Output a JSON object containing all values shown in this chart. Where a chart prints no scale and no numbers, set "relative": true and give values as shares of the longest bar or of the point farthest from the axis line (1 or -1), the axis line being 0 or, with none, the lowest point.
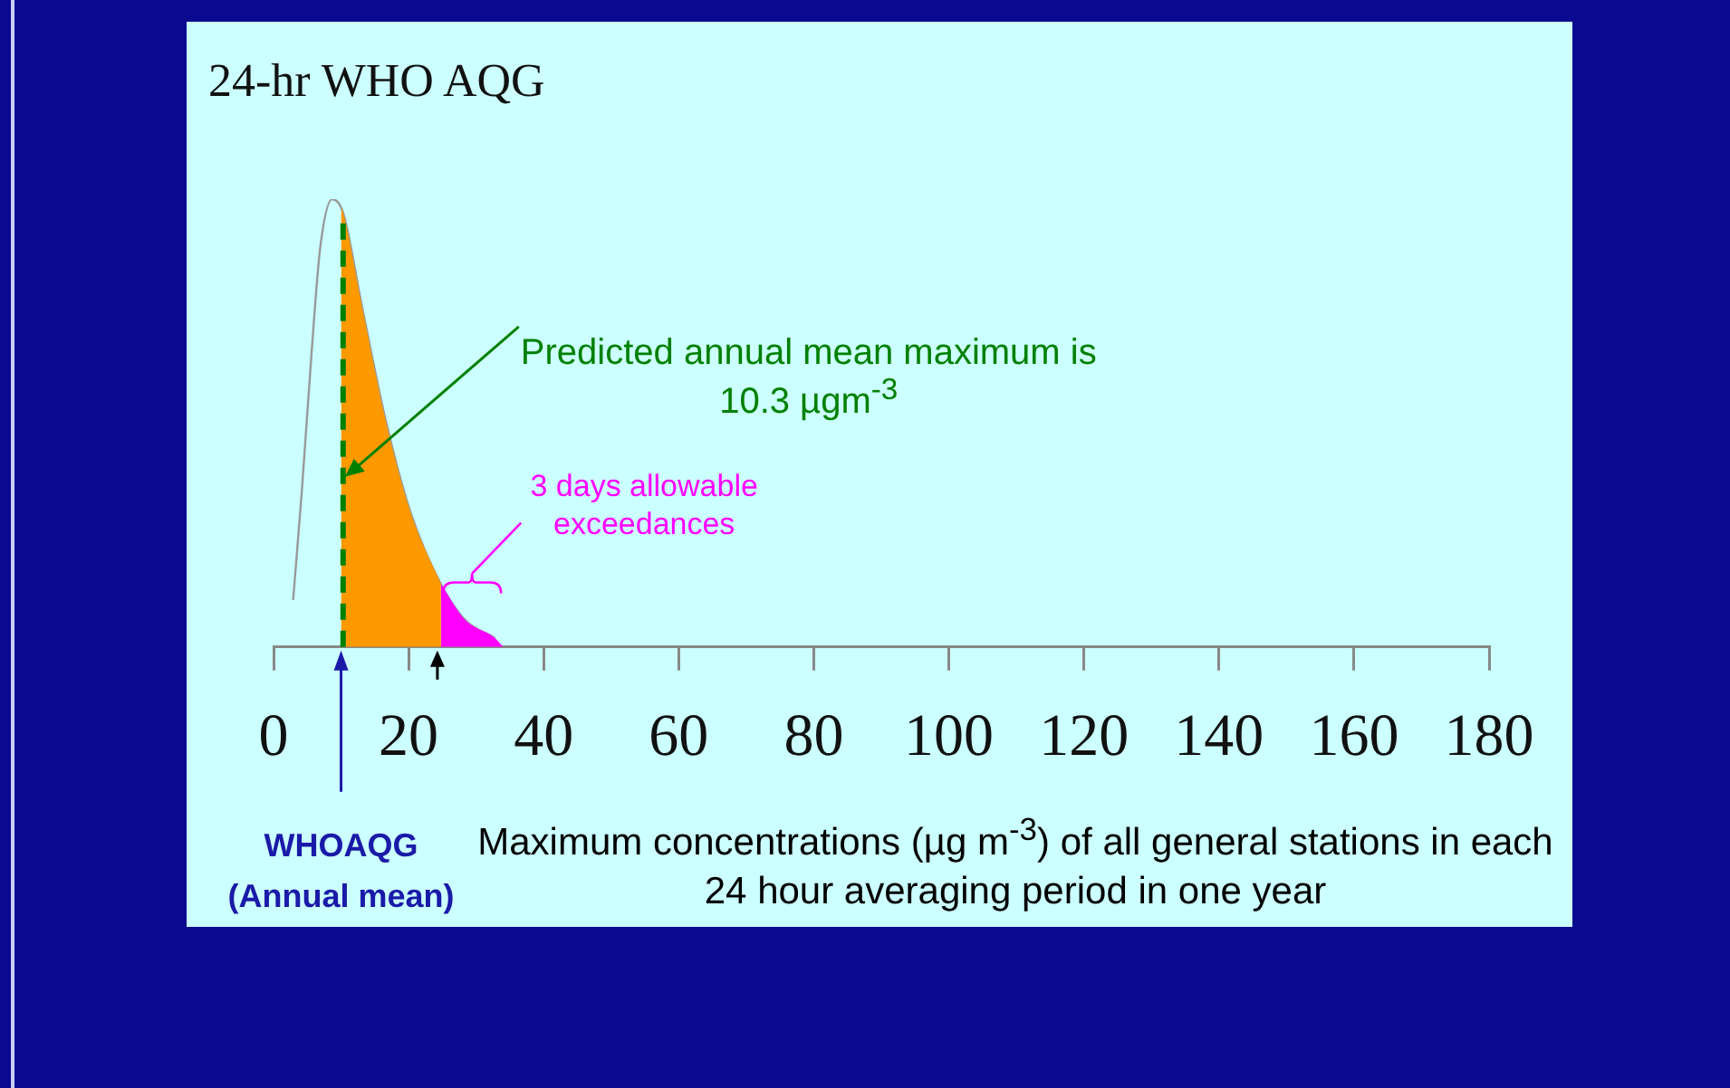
{
  "chart_data": {
    "type": "line",
    "title": "24-hr WHO AQG",
    "xlabel": "Maximum concentrations (µg m$^{-3}$) of all general stations in each 24 hour averaging period in one year",
    "relative": true,
    "xlim": [
      0,
      180
    ],
    "xticks": [
      0,
      20,
      40,
      60,
      80,
      100,
      120,
      140,
      160,
      180
    ],
    "tick_labels": "x",
    "grid": false,
    "legend": false,
    "series": [
      {
        "type": "area",
        "color": "#ff9900",
        "x": [
          10,
          10.3,
          13.1,
          16.7,
          20.3,
          24.8
        ],
        "values": [
          0.98,
          0.97,
          0.76,
          0.5,
          0.3,
          0.14
        ]
      },
      {
        "type": "area",
        "color": "#ff00ff",
        "x": [
          24.8,
          28.4,
          32.8,
          34
        ],
        "values": [
          0.14,
          0.06,
          0.02,
          0
        ]
      },
      {
        "type": "line",
        "color": "#999999",
        "x": [
          2.9,
          4.2,
          5.6,
          6.9,
          8.7,
          10.3,
          13.1,
          16.7,
          20.3,
          24.8,
          28.4,
          32.8
        ],
        "values": [
          0.105,
          0.35,
          0.65,
          0.89,
          1,
          0.97,
          0.76,
          0.5,
          0.3,
          0.14,
          0.06,
          0.02
        ]
      }
    ],
    "ref_lines": [
      {
        "axis": "x",
        "value": 10.3,
        "label": null,
        "color": "#008000",
        "line_style": "dashed"
      }
    ],
    "annotations": [
      {
        "text": "Predicted annual mean maximum is 10.3 µgm$^{-3}$",
        "x": 10.3,
        "y": 0.38
      },
      "3 days allowable exceedances",
      "WHOAQG (Annual mean)"
    ]
  }
}
